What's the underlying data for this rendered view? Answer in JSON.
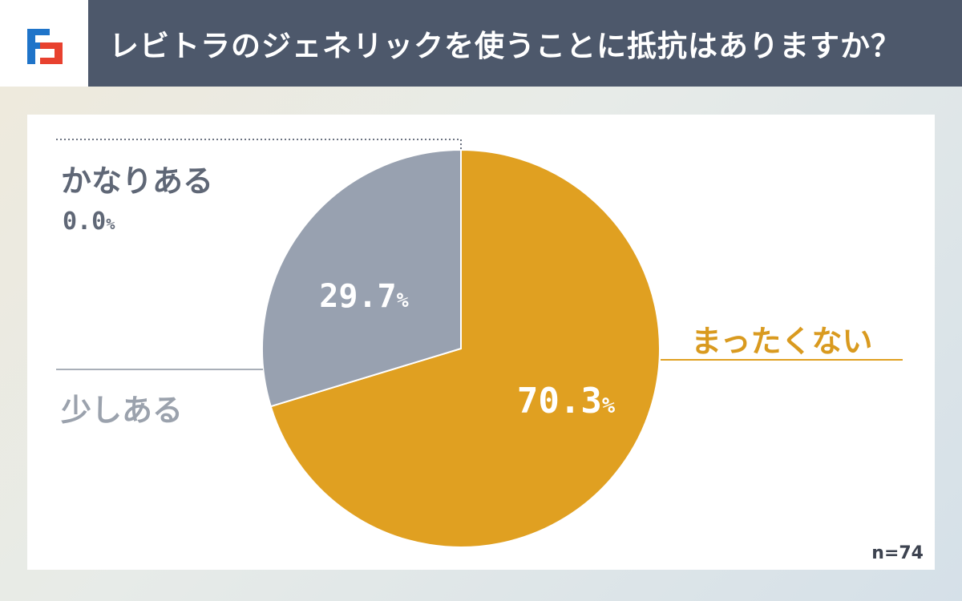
{
  "header": {
    "title": "レビトラのジェネリックを使うことに抵抗はありますか？",
    "logo_icon": "brand-logo-icon"
  },
  "colors": {
    "header_bg": "#4d586b",
    "logo_blue": "#1f74c9",
    "logo_red": "#e8412f",
    "slice_mattaku": "#e0a021",
    "slice_sukoshi": "#98a1b0",
    "label_dark": "#5f6776",
    "label_light": "#9ba2ad"
  },
  "chart_data": {
    "type": "pie",
    "title": "レビトラのジェネリックを使うことに抵抗はありますか？",
    "labels": [
      "まったくない",
      "少しある",
      "かなりある"
    ],
    "values": [
      70.3,
      29.7,
      0.0
    ],
    "value_labels": [
      "70.3",
      "29.7",
      "0.0"
    ],
    "unit": "%",
    "legend": "none (callout labels)",
    "n_label": "n=74"
  }
}
